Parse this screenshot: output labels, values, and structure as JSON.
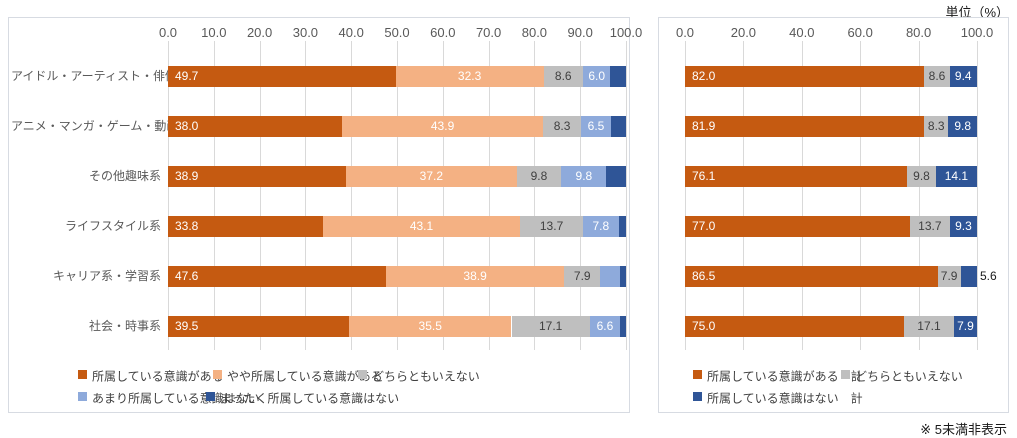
{
  "unit_label": "単位（%）",
  "footnote": "※ 5未満非表示",
  "colors": {
    "segment_agree": "#C55A11",
    "segment_somewhat_agree": "#F4B183",
    "segment_neutral": "#BFBFBF",
    "segment_somewhat_disagree": "#8EAADB",
    "segment_disagree": "#2F5597",
    "gridline": "#D9D9D9",
    "axis_text": "#595959",
    "category_text": "#595959",
    "legend_text": "#404040",
    "panel_border": "#D7DBE2",
    "outside_label_text": "#1A1A1A"
  },
  "chart_data": [
    {
      "type": "bar",
      "orientation": "horizontal",
      "stacked": true,
      "title": "",
      "xlabel": "",
      "ylabel": "",
      "xlim": [
        0,
        100
      ],
      "x_ticks": [
        0,
        10,
        20,
        30,
        40,
        50,
        60,
        70,
        80,
        90,
        100
      ],
      "grid": true,
      "legend_position": "bottom",
      "value_label_rule": "labels hidden for values below 5 (※ 5未満非表示); trailing segment values estimated from remainder",
      "categories": [
        "アイドル・アーティスト・俳優系",
        "アニメ・マンガ・ゲーム・動画系",
        "その他趣味系",
        "ライフスタイル系",
        "キャリア系・学習系",
        "社会・時事系"
      ],
      "series": [
        {
          "name": "所属している意識がある",
          "color": "#C55A11",
          "label_color": "#FFFFFF",
          "values": [
            49.7,
            38.0,
            38.9,
            33.8,
            47.6,
            39.5
          ]
        },
        {
          "name": "やや所属している意識がある",
          "color": "#F4B183",
          "label_color": "#FFFFFF",
          "values": [
            32.3,
            43.9,
            37.2,
            43.1,
            38.9,
            35.5
          ]
        },
        {
          "name": "どちらともいえない",
          "color": "#BFBFBF",
          "label_color": "#404040",
          "values": [
            8.6,
            8.3,
            9.8,
            13.7,
            7.9,
            17.1
          ]
        },
        {
          "name": "あまり所属している意識はない",
          "color": "#8EAADB",
          "label_color": "#FFFFFF",
          "values": [
            6.0,
            6.5,
            9.8,
            7.8,
            4.2,
            6.6
          ]
        },
        {
          "name": "まったく所属している意識はない",
          "color": "#2F5597",
          "label_color": "#FFFFFF",
          "values": [
            3.4,
            3.3,
            4.3,
            1.6,
            1.4,
            1.3
          ]
        }
      ]
    },
    {
      "type": "bar",
      "orientation": "horizontal",
      "stacked": true,
      "title": "",
      "xlabel": "",
      "ylabel": "",
      "xlim": [
        0,
        100
      ],
      "x_ticks": [
        0,
        20,
        40,
        60,
        80,
        100
      ],
      "grid": true,
      "legend_position": "bottom",
      "value_label_rule": "labels hidden for values below 5; narrow labeled segments show value outside bar",
      "categories": [
        "アイドル・アーティスト・俳優系",
        "アニメ・マンガ・ゲーム・動画系",
        "その他趣味系",
        "ライフスタイル系",
        "キャリア系・学習系",
        "社会・時事系"
      ],
      "categories_shown": false,
      "series": [
        {
          "name": "所属している意識がある　計",
          "color": "#C55A11",
          "label_color": "#FFFFFF",
          "values": [
            82.0,
            81.9,
            76.1,
            77.0,
            86.5,
            75.0
          ]
        },
        {
          "name": "どちらともいえない",
          "color": "#BFBFBF",
          "label_color": "#404040",
          "values": [
            8.6,
            8.3,
            9.8,
            13.7,
            7.9,
            17.1
          ]
        },
        {
          "name": "所属している意識はない　計",
          "color": "#2F5597",
          "label_color": "#FFFFFF",
          "values": [
            9.4,
            9.8,
            14.1,
            9.3,
            5.6,
            7.9
          ]
        }
      ]
    }
  ]
}
